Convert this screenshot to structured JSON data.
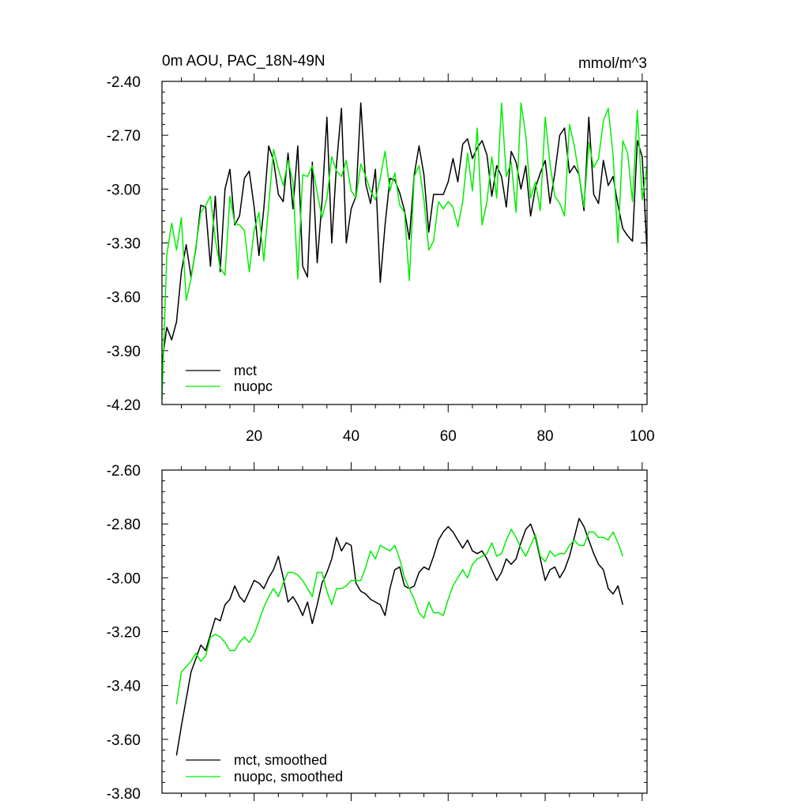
{
  "chart_data": [
    {
      "type": "line",
      "title": "0m AOU, PAC_18N-49N",
      "units": "mmol/m^3",
      "xlabel": "",
      "ylabel": "",
      "xlim": [
        1,
        101
      ],
      "ylim": [
        -4.2,
        -2.4
      ],
      "x_ticks": [
        20,
        40,
        60,
        80,
        100
      ],
      "y_ticks": [
        -4.2,
        -3.9,
        -3.6,
        -3.3,
        -3.0,
        -2.7,
        -2.4
      ],
      "y_tick_labels": [
        "-4.20",
        "-3.90",
        "-3.60",
        "-3.30",
        "-3.00",
        "-2.70",
        "-2.40"
      ],
      "x_tick_labels": [
        "20",
        "40",
        "60",
        "80",
        "100"
      ],
      "legend": {
        "position": "bottom-left",
        "entries": [
          "mct",
          "nuopc"
        ]
      },
      "x_start": 1,
      "series": [
        {
          "name": "mct",
          "color": "#000000",
          "values": [
            -3.97,
            -3.77,
            -3.84,
            -3.74,
            -3.46,
            -3.31,
            -3.49,
            -3.33,
            -3.09,
            -3.1,
            -3.43,
            -3.04,
            -3.46,
            -3.0,
            -2.89,
            -3.2,
            -3.15,
            -2.94,
            -2.9,
            -3.1,
            -3.37,
            -3.11,
            -2.76,
            -2.84,
            -3.03,
            -3.07,
            -2.8,
            -3.11,
            -2.76,
            -3.43,
            -3.49,
            -2.85,
            -3.41,
            -3.07,
            -2.6,
            -3.3,
            -2.86,
            -2.55,
            -3.3,
            -3.11,
            -3.04,
            -2.52,
            -2.97,
            -3.08,
            -2.89,
            -3.52,
            -3.2,
            -2.94,
            -2.95,
            -3.02,
            -3.12,
            -3.28,
            -2.92,
            -2.76,
            -2.92,
            -3.24,
            -3.03,
            -3.03,
            -3.03,
            -2.96,
            -2.83,
            -2.96,
            -2.75,
            -2.72,
            -2.83,
            -2.77,
            -2.73,
            -2.81,
            -3.04,
            -2.87,
            -2.93,
            -3.1,
            -2.79,
            -2.85,
            -3.0,
            -2.87,
            -3.15,
            -2.99,
            -2.91,
            -2.84,
            -3.08,
            -2.91,
            -2.7,
            -2.66,
            -2.91,
            -2.87,
            -2.92,
            -3.12,
            -2.6,
            -3.03,
            -3.08,
            -2.84,
            -2.98,
            -2.93,
            -3.09,
            -3.22,
            -3.26,
            -3.29,
            -2.73,
            -2.82,
            -3.35
          ]
        },
        {
          "name": "nuopc",
          "color": "#00ee00",
          "values": [
            -4.17,
            -3.37,
            -3.19,
            -3.34,
            -3.16,
            -3.62,
            -3.5,
            -3.32,
            -3.13,
            -3.09,
            -3.04,
            -3.28,
            -3.44,
            -3.48,
            -3.04,
            -3.19,
            -3.2,
            -3.23,
            -3.46,
            -3.23,
            -3.13,
            -3.4,
            -3.09,
            -2.78,
            -2.89,
            -2.98,
            -2.84,
            -2.96,
            -3.5,
            -2.92,
            -2.93,
            -2.87,
            -3.02,
            -3.16,
            -3.05,
            -2.82,
            -2.9,
            -2.93,
            -2.84,
            -3.01,
            -3.05,
            -2.86,
            -2.93,
            -3.01,
            -3.06,
            -2.94,
            -2.79,
            -3.01,
            -2.91,
            -3.09,
            -3.13,
            -3.51,
            -2.93,
            -2.87,
            -3.06,
            -3.34,
            -3.29,
            -3.07,
            -3.11,
            -3.07,
            -3.1,
            -3.21,
            -3.07,
            -2.8,
            -3.01,
            -2.66,
            -3.2,
            -3.07,
            -2.82,
            -3.05,
            -2.52,
            -2.93,
            -2.85,
            -3.13,
            -2.52,
            -2.7,
            -3.05,
            -2.96,
            -3.12,
            -2.6,
            -2.86,
            -3.04,
            -3.08,
            -3.15,
            -2.64,
            -2.76,
            -2.92,
            -3.1,
            -2.74,
            -2.88,
            -2.83,
            -2.62,
            -2.55,
            -2.81,
            -3.3,
            -2.73,
            -2.8,
            -3.07,
            -2.56,
            -3.06,
            -2.87
          ]
        }
      ]
    },
    {
      "type": "line",
      "title": "",
      "xlabel": "",
      "ylabel": "",
      "xlim": [
        1,
        101
      ],
      "ylim": [
        -3.8,
        -2.6
      ],
      "x_ticks": [
        20,
        40,
        60,
        80,
        100
      ],
      "x_tick_labels": [],
      "y_ticks": [
        -3.8,
        -3.6,
        -3.4,
        -3.2,
        -3.0,
        -2.8,
        -2.6
      ],
      "y_tick_labels": [
        "-3.80",
        "-3.60",
        "-3.40",
        "-3.20",
        "-3.00",
        "-2.80",
        "-2.60"
      ],
      "legend": {
        "position": "bottom-left",
        "entries": [
          "mct, smoothed",
          "nuopc, smoothed"
        ]
      },
      "x_start": 4,
      "series": [
        {
          "name": "mct, smoothed",
          "color": "#000000",
          "values": [
            -3.66,
            -3.55,
            -3.45,
            -3.35,
            -3.3,
            -3.25,
            -3.27,
            -3.21,
            -3.15,
            -3.16,
            -3.1,
            -3.08,
            -3.03,
            -3.07,
            -3.09,
            -3.05,
            -3.01,
            -3.02,
            -3.04,
            -3.0,
            -2.97,
            -2.92,
            -3.0,
            -3.09,
            -3.07,
            -3.1,
            -3.14,
            -3.09,
            -3.17,
            -3.1,
            -3.02,
            -2.98,
            -2.93,
            -2.85,
            -2.9,
            -2.87,
            -2.88,
            -3.02,
            -3.05,
            -3.06,
            -3.08,
            -3.09,
            -3.1,
            -3.14,
            -3.04,
            -2.97,
            -2.96,
            -3.03,
            -3.04,
            -3.03,
            -2.98,
            -2.96,
            -2.97,
            -2.92,
            -2.86,
            -2.83,
            -2.81,
            -2.83,
            -2.86,
            -2.89,
            -2.86,
            -2.9,
            -2.91,
            -2.9,
            -2.93,
            -2.97,
            -3.01,
            -2.98,
            -2.93,
            -2.95,
            -2.93,
            -2.87,
            -2.82,
            -2.8,
            -2.85,
            -2.93,
            -3.01,
            -2.97,
            -2.96,
            -3.0,
            -2.97,
            -2.92,
            -2.85,
            -2.78,
            -2.81,
            -2.86,
            -2.91,
            -2.95,
            -2.97,
            -3.04,
            -3.06,
            -3.03,
            -3.1
          ]
        },
        {
          "name": "nuopc, smoothed",
          "color": "#00ee00",
          "values": [
            -3.47,
            -3.35,
            -3.33,
            -3.31,
            -3.28,
            -3.31,
            -3.29,
            -3.22,
            -3.21,
            -3.22,
            -3.24,
            -3.27,
            -3.27,
            -3.24,
            -3.22,
            -3.24,
            -3.21,
            -3.16,
            -3.11,
            -3.07,
            -3.04,
            -3.07,
            -3.02,
            -2.98,
            -2.98,
            -2.99,
            -3.01,
            -3.04,
            -3.07,
            -2.98,
            -2.98,
            -3.05,
            -3.1,
            -3.04,
            -3.04,
            -3.03,
            -3.01,
            -3.01,
            -3.01,
            -2.96,
            -2.9,
            -2.93,
            -2.88,
            -2.89,
            -2.9,
            -2.88,
            -2.93,
            -3.0,
            -3.04,
            -3.08,
            -3.13,
            -3.15,
            -3.09,
            -3.13,
            -3.13,
            -3.14,
            -3.08,
            -3.03,
            -3.0,
            -2.97,
            -3.0,
            -2.95,
            -2.93,
            -2.92,
            -2.91,
            -2.87,
            -2.92,
            -2.91,
            -2.86,
            -2.82,
            -2.85,
            -2.89,
            -2.92,
            -2.88,
            -2.84,
            -2.92,
            -2.94,
            -2.9,
            -2.92,
            -2.91,
            -2.91,
            -2.88,
            -2.86,
            -2.88,
            -2.88,
            -2.83,
            -2.83,
            -2.85,
            -2.85,
            -2.86,
            -2.83,
            -2.87,
            -2.92
          ]
        }
      ]
    }
  ]
}
